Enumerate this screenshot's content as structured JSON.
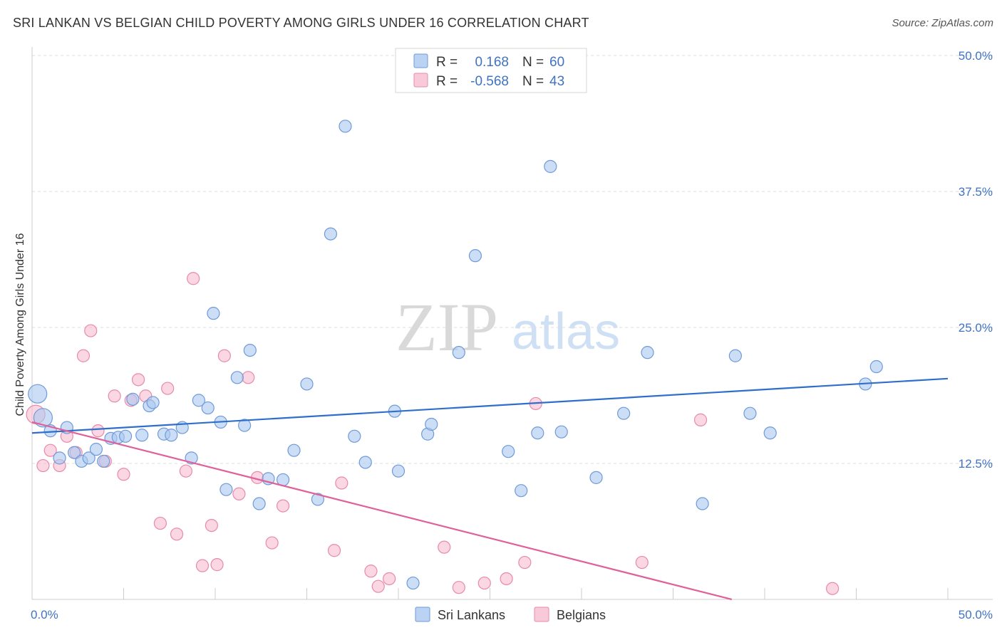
{
  "header": {
    "title": "SRI LANKAN VS BELGIAN CHILD POVERTY AMONG GIRLS UNDER 16 CORRELATION CHART",
    "source": "Source: ZipAtlas.com"
  },
  "watermark": {
    "zip": "ZIP",
    "atlas": "atlas"
  },
  "colors": {
    "blue_fill": "#aac8f0",
    "blue_stroke": "#6f9ad8",
    "blue_line": "#2f6fcc",
    "pink_fill": "#f6bdd0",
    "pink_stroke": "#e88aa9",
    "pink_line": "#e0609a",
    "accent_text": "#3f73c3",
    "grid": "#dcdcdc"
  },
  "legend": {
    "rows": [
      {
        "r_label": "R =",
        "r_value": "0.168",
        "n_label": "N =",
        "n_value": "60"
      },
      {
        "r_label": "R =",
        "r_value": "-0.568",
        "n_label": "N =",
        "n_value": "43"
      }
    ]
  },
  "chart_data": {
    "type": "scatter",
    "title": "SRI LANKAN VS BELGIAN CHILD POVERTY AMONG GIRLS UNDER 16 CORRELATION CHART",
    "xlabel": "",
    "ylabel": "Child Poverty Among Girls Under 16",
    "xlim": [
      0,
      50
    ],
    "ylim": [
      0,
      50
    ],
    "x_tick_labels": [
      "0.0%",
      "50.0%"
    ],
    "y_ticks": [
      12.5,
      25.0,
      37.5,
      50.0
    ],
    "y_tick_labels": [
      "12.5%",
      "25.0%",
      "37.5%",
      "50.0%"
    ],
    "grid": true,
    "legend_position": "top-center",
    "series": [
      {
        "name": "Sri Lankans",
        "color": "#aac8f0",
        "r": 0.168,
        "n": 60,
        "trend": {
          "x": [
            0,
            50
          ],
          "y": [
            15.3,
            20.3
          ]
        },
        "points": [
          [
            0.3,
            18.9,
            1
          ],
          [
            0.6,
            16.7,
            1
          ],
          [
            1.0,
            15.5,
            0
          ],
          [
            1.5,
            13.0,
            0
          ],
          [
            1.9,
            15.8,
            0
          ],
          [
            2.3,
            13.5,
            0
          ],
          [
            2.7,
            12.7,
            0
          ],
          [
            3.1,
            13.0,
            0
          ],
          [
            3.5,
            13.8,
            0
          ],
          [
            3.9,
            12.7,
            0
          ],
          [
            4.3,
            14.8,
            0
          ],
          [
            4.7,
            14.9,
            0
          ],
          [
            5.1,
            15.0,
            0
          ],
          [
            5.5,
            18.4,
            0
          ],
          [
            6.0,
            15.1,
            0
          ],
          [
            6.4,
            17.8,
            0
          ],
          [
            6.6,
            18.1,
            0
          ],
          [
            7.2,
            15.2,
            0
          ],
          [
            7.6,
            15.1,
            0
          ],
          [
            8.2,
            15.8,
            0
          ],
          [
            8.7,
            13.0,
            0
          ],
          [
            9.1,
            18.3,
            0
          ],
          [
            9.6,
            17.6,
            0
          ],
          [
            9.9,
            26.3,
            0
          ],
          [
            10.3,
            16.3,
            0
          ],
          [
            10.6,
            10.1,
            0
          ],
          [
            11.2,
            20.4,
            0
          ],
          [
            11.6,
            16.0,
            0
          ],
          [
            11.9,
            22.9,
            0
          ],
          [
            12.4,
            8.8,
            0
          ],
          [
            12.9,
            11.1,
            0
          ],
          [
            13.7,
            11.0,
            0
          ],
          [
            14.3,
            13.7,
            0
          ],
          [
            15.0,
            19.8,
            0
          ],
          [
            15.6,
            9.2,
            0
          ],
          [
            16.3,
            33.6,
            0
          ],
          [
            17.1,
            43.5,
            0
          ],
          [
            17.6,
            15.0,
            0
          ],
          [
            18.2,
            12.6,
            0
          ],
          [
            19.8,
            17.3,
            0
          ],
          [
            20.0,
            11.8,
            0
          ],
          [
            20.8,
            1.5,
            0
          ],
          [
            21.6,
            15.2,
            0
          ],
          [
            21.8,
            16.1,
            0
          ],
          [
            23.3,
            22.7,
            0
          ],
          [
            24.2,
            31.6,
            0
          ],
          [
            26.0,
            13.6,
            0
          ],
          [
            26.7,
            10.0,
            0
          ],
          [
            27.6,
            15.3,
            0
          ],
          [
            28.3,
            39.8,
            0
          ],
          [
            30.8,
            11.2,
            0
          ],
          [
            32.3,
            17.1,
            0
          ],
          [
            33.6,
            22.7,
            0
          ],
          [
            36.6,
            8.8,
            0
          ],
          [
            38.4,
            22.4,
            0
          ],
          [
            39.2,
            17.1,
            0
          ],
          [
            40.3,
            15.3,
            0
          ],
          [
            45.5,
            19.8,
            0
          ],
          [
            46.1,
            21.4,
            0
          ],
          [
            28.9,
            15.4,
            0
          ]
        ]
      },
      {
        "name": "Belgians",
        "color": "#f6bdd0",
        "r": -0.568,
        "n": 43,
        "trend": {
          "x": [
            0,
            38.2
          ],
          "y": [
            16.3,
            0
          ]
        },
        "points": [
          [
            0.2,
            17.0,
            1
          ],
          [
            0.6,
            12.3,
            0
          ],
          [
            1.0,
            13.7,
            0
          ],
          [
            1.5,
            12.3,
            0
          ],
          [
            1.9,
            15.0,
            0
          ],
          [
            2.4,
            13.5,
            0
          ],
          [
            2.8,
            22.4,
            0
          ],
          [
            3.2,
            24.7,
            0
          ],
          [
            3.6,
            15.5,
            0
          ],
          [
            4.0,
            12.7,
            0
          ],
          [
            4.5,
            18.7,
            0
          ],
          [
            5.0,
            11.5,
            0
          ],
          [
            5.4,
            18.3,
            0
          ],
          [
            5.8,
            20.2,
            0
          ],
          [
            6.2,
            18.7,
            0
          ],
          [
            7.0,
            7.0,
            0
          ],
          [
            7.4,
            19.4,
            0
          ],
          [
            7.9,
            6.0,
            0
          ],
          [
            8.4,
            11.8,
            0
          ],
          [
            8.8,
            29.5,
            0
          ],
          [
            9.3,
            3.1,
            0
          ],
          [
            9.8,
            6.8,
            0
          ],
          [
            10.1,
            3.2,
            0
          ],
          [
            10.5,
            22.4,
            0
          ],
          [
            11.3,
            9.7,
            0
          ],
          [
            11.8,
            20.4,
            0
          ],
          [
            12.3,
            11.2,
            0
          ],
          [
            13.1,
            5.2,
            0
          ],
          [
            13.7,
            8.6,
            0
          ],
          [
            16.5,
            4.5,
            0
          ],
          [
            16.9,
            10.7,
            0
          ],
          [
            18.5,
            2.6,
            0
          ],
          [
            18.9,
            1.2,
            0
          ],
          [
            19.5,
            1.9,
            0
          ],
          [
            22.5,
            4.8,
            0
          ],
          [
            23.3,
            1.1,
            0
          ],
          [
            24.7,
            1.5,
            0
          ],
          [
            25.9,
            1.9,
            0
          ],
          [
            26.9,
            3.4,
            0
          ],
          [
            33.3,
            3.4,
            0
          ],
          [
            36.5,
            16.5,
            0
          ],
          [
            43.7,
            1.0,
            0
          ],
          [
            27.5,
            18.0,
            0
          ]
        ]
      }
    ]
  }
}
